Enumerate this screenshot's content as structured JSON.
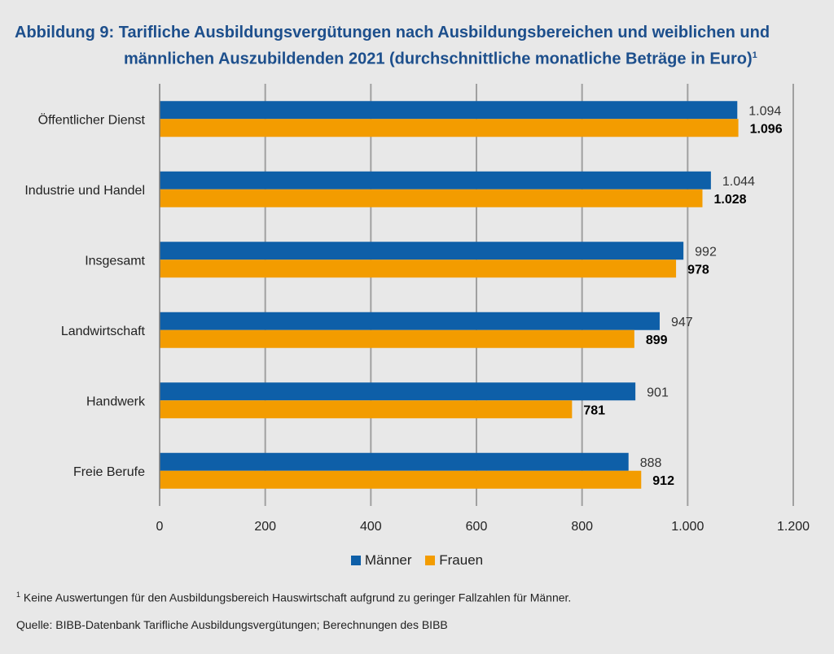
{
  "title_line1": "Abbildung 9: Tarifliche Ausbildungsvergütungen nach Ausbildungsbereichen und weiblichen und",
  "title_line2": "männlichen Auszubildenden 2021 (durchschnittliche monatliche Beträge in Euro)",
  "title_footnote_mark": "1",
  "footnote_mark": "1",
  "footnote": "Keine Auswertungen für den Ausbildungsbereich Hauswirtschaft aufgrund zu geringer Fallzahlen für Männer.",
  "source": "Quelle: BIBB-Datenbank Tarifliche Ausbildungsvergütungen; Berechnungen des BIBB",
  "colors": {
    "maenner": "#0e5fa8",
    "frauen": "#f39c00",
    "grid": "#a0a0a0",
    "background": "#e8e8e8"
  },
  "chart_data": {
    "type": "bar",
    "orientation": "horizontal",
    "title": "Tarifliche Ausbildungsvergütungen nach Ausbildungsbereichen und weiblichen und männlichen Auszubildenden 2021",
    "categories": [
      "Öffentlicher Dienst",
      "Industrie und Handel",
      "Insgesamt",
      "Landwirtschaft",
      "Handwerk",
      "Freie Berufe"
    ],
    "series": [
      {
        "name": "Männer",
        "values": [
          1094,
          1044,
          992,
          947,
          901,
          888
        ],
        "labels": [
          "1.094",
          "1.044",
          "992",
          "947",
          "901",
          "888"
        ]
      },
      {
        "name": "Frauen",
        "values": [
          1096,
          1028,
          978,
          899,
          781,
          912
        ],
        "labels": [
          "1.096",
          "1.028",
          "978",
          "899",
          "781",
          "912"
        ]
      }
    ],
    "xlim": [
      0,
      1200
    ],
    "xticks": [
      0,
      200,
      400,
      600,
      800,
      1000,
      1200
    ],
    "xtick_labels": [
      "0",
      "200",
      "400",
      "600",
      "800",
      "1.000",
      "1.200"
    ],
    "grid": true,
    "legend": "bottom-center"
  }
}
